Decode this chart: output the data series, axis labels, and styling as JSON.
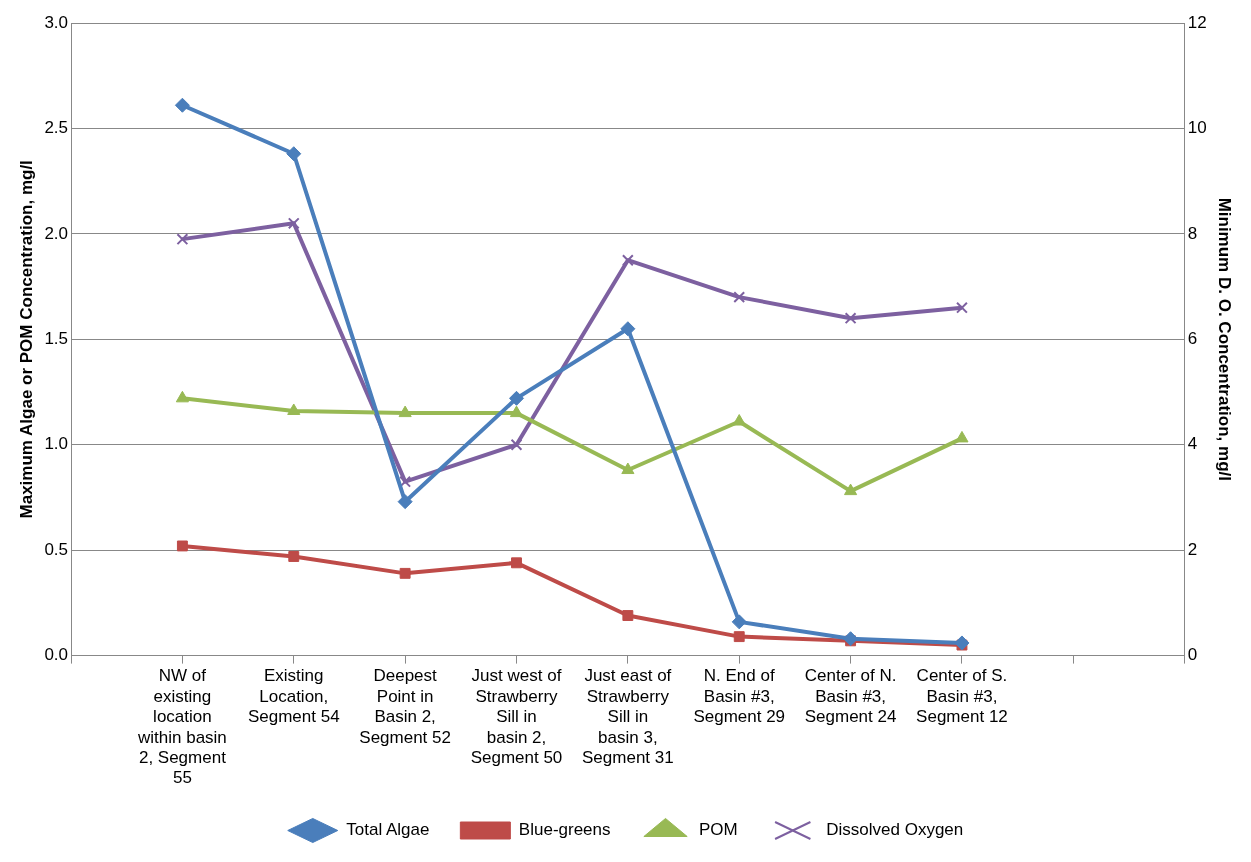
{
  "chart_data": {
    "type": "line",
    "xlabel": null,
    "ylabel": "Maximum Algae or POM Concentration, mg/l",
    "y2label": "Minimum D. O. Concentration, mg/l",
    "categories": [
      null,
      "NW of existing location within basin 2, Segment 55",
      "Existing Location, Segment 54",
      "Deepest Point in Basin 2, Segment 52",
      "Just west of Strawberry Sill in basin 2, Segment 50",
      "Just east of Strawberry Sill in basin 3, Segment 31",
      "N. End of Basin #3, Segment 29",
      "Center of N. Basin #3, Segment 24",
      "Center of S. Basin #3, Segment 12",
      null,
      null
    ],
    "series": [
      {
        "name": "Total Algae",
        "color": "#4a7ebb",
        "marker": "diamond",
        "values": [
          null,
          2.61,
          2.38,
          0.73,
          1.22,
          1.55,
          0.16,
          0.08,
          0.06,
          null,
          null
        ]
      },
      {
        "name": "Blue-greens",
        "color": "#be4b48",
        "marker": "square",
        "values": [
          null,
          0.52,
          0.47,
          0.39,
          0.44,
          0.19,
          0.09,
          0.07,
          0.05,
          null,
          null
        ]
      },
      {
        "name": "POM",
        "color": "#98b954",
        "marker": "triangle",
        "values": [
          null,
          1.22,
          1.16,
          1.15,
          1.15,
          0.88,
          1.11,
          0.78,
          1.03,
          null,
          null
        ]
      },
      {
        "name": "Dissolved Oxygen",
        "color": "#7d60a0",
        "marker": "cross",
        "axis": "y2",
        "values": [
          null,
          7.9,
          8.2,
          3.3,
          4.0,
          7.5,
          6.8,
          6.4,
          6.6,
          null,
          null
        ]
      }
    ],
    "ylim": [
      0,
      3
    ],
    "yticks": [
      {
        "value": 0,
        "label": "0.0"
      },
      0.5,
      {
        "value": 1,
        "label": "1.0"
      },
      1.5,
      {
        "value": 2,
        "label": "2.0"
      },
      2.5,
      {
        "value": 3,
        "label": "3.0"
      }
    ],
    "y2lim": [
      0,
      12
    ],
    "y2ticks": [
      0,
      2,
      4,
      6,
      8,
      10,
      12
    ],
    "grid": "y",
    "legend": "bottom",
    "line_style": "solid"
  }
}
